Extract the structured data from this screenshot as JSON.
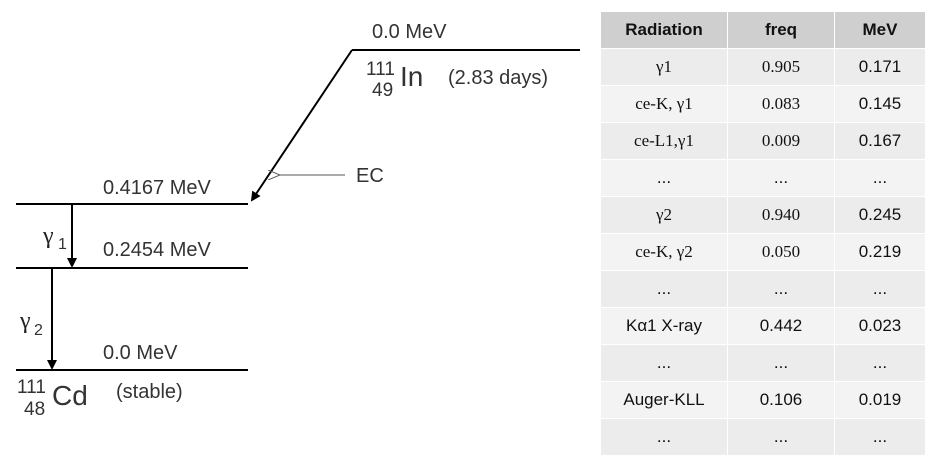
{
  "levels": {
    "parent_energy": "0.0 MeV",
    "level1_energy": "0.4167  MeV",
    "level2_energy": "0.2454 MeV",
    "ground_energy": "0.0 MeV"
  },
  "parent": {
    "mass": "111",
    "z": "49",
    "symbol": "In",
    "halflife": "(2.83 days)"
  },
  "daughter": {
    "mass": "111",
    "z": "48",
    "symbol": "Cd",
    "status": "(stable)"
  },
  "decay": {
    "ec_label": "EC"
  },
  "gammas": {
    "g1_symbol": "γ",
    "g1_sub": "1",
    "g2_symbol": "γ",
    "g2_sub": "2"
  },
  "table": {
    "headers": [
      "Radiation",
      "freq",
      "MeV"
    ],
    "rows": [
      [
        "γ1",
        "0.905",
        "0.171"
      ],
      [
        "ce-K, γ1",
        "0.083",
        "0.145"
      ],
      [
        "ce-L1,γ1",
        "0.009",
        "0.167"
      ],
      [
        "...",
        "...",
        "..."
      ],
      [
        "γ2",
        "0.940",
        "0.245"
      ],
      [
        "ce-K, γ2",
        "0.050",
        "0.219"
      ],
      [
        "...",
        "...",
        "..."
      ],
      [
        "Kα1 X-ray",
        "0.442",
        "0.023"
      ],
      [
        "...",
        "...",
        "..."
      ],
      [
        "Auger-KLL",
        "0.106",
        "0.019"
      ],
      [
        "...",
        "...",
        "..."
      ]
    ]
  },
  "colors": {
    "line": "#000000",
    "text": "#333333",
    "header_bg": "#cfcfcf",
    "cell_bg": "#ececec"
  }
}
